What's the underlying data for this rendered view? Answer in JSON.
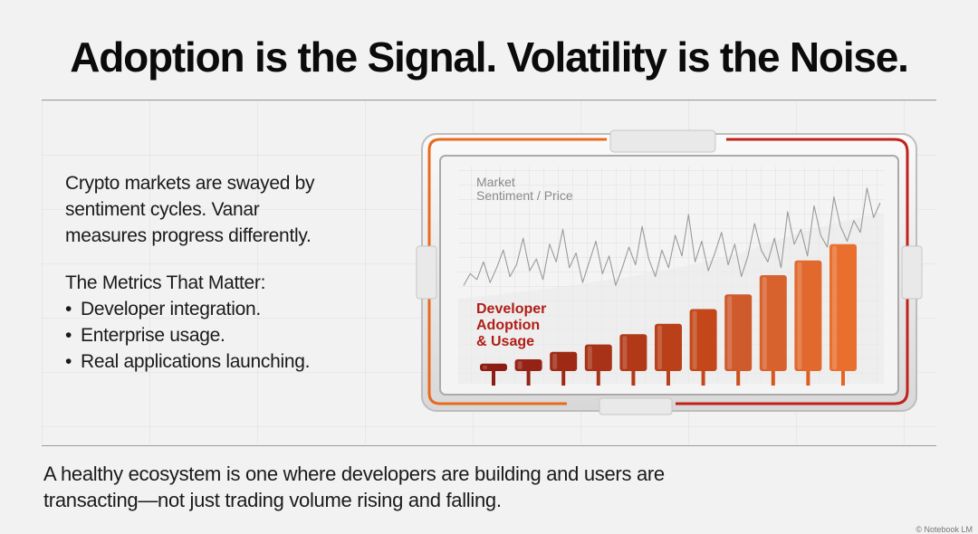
{
  "title": "Adoption is the Signal. Volatility is the Noise.",
  "intro_line1": "Crypto markets are swayed by",
  "intro_line2": "sentiment cycles. Vanar",
  "intro_line3": "measures progress differently.",
  "metrics_heading": "The Metrics That Matter:",
  "metrics": [
    "Developer integration.",
    "Enterprise usage.",
    "Real applications launching."
  ],
  "bullet_char": "•",
  "footer_line1": "A healthy ecosystem is one where developers are building and users are",
  "footer_line2": "transacting—not just trading volume rising and falling.",
  "credit": "© Notebook LM",
  "colors": {
    "background": "#f2f2f2",
    "bar_dark": "#8c1c14",
    "bar_light": "#e8641e",
    "accent_red": "#c0221a",
    "accent_orange": "#e86a1e"
  },
  "chart_data": {
    "type": "bar",
    "title": "",
    "series": [
      {
        "name": "Developer Adoption & Usage",
        "label_lines": [
          "Developer",
          "Adoption",
          "& Usage"
        ],
        "values": [
          5,
          8,
          13,
          18,
          25,
          32,
          42,
          52,
          65,
          75,
          86
        ]
      },
      {
        "name": "Market Sentiment / Price",
        "label_lines": [
          "Market",
          "Sentiment / Price"
        ],
        "type": "line",
        "values": [
          58,
          66,
          62,
          74,
          60,
          70,
          82,
          64,
          72,
          90,
          68,
          76,
          62,
          86,
          74,
          96,
          70,
          80,
          60,
          74,
          88,
          66,
          78,
          58,
          70,
          84,
          72,
          98,
          76,
          64,
          82,
          70,
          92,
          78,
          106,
          74,
          88,
          68,
          80,
          94,
          72,
          86,
          64,
          78,
          100,
          82,
          74,
          90,
          70,
          108,
          86,
          96,
          78,
          112,
          92,
          84,
          118,
          98,
          88,
          102,
          94,
          124,
          104,
          114
        ]
      }
    ],
    "ylim": [
      0,
      130
    ],
    "grid": true,
    "xlabel": "",
    "ylabel": ""
  }
}
